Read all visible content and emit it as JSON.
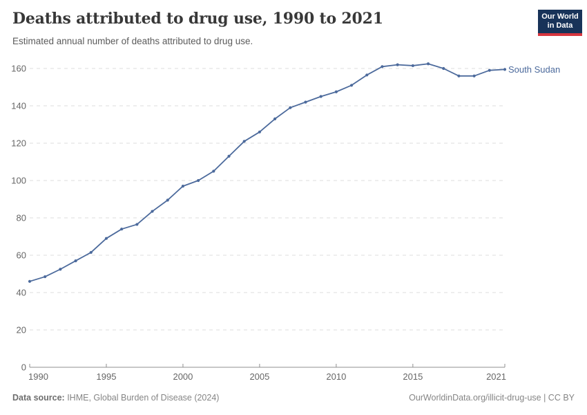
{
  "header": {
    "title": "Deaths attributed to drug use, 1990 to 2021",
    "subtitle": "Estimated annual number of deaths attributed to drug use.",
    "logo": {
      "line1": "Our World",
      "line2": "in Data"
    }
  },
  "chart_data": {
    "type": "line",
    "title": "Deaths attributed to drug use, 1990 to 2021",
    "xlabel": "",
    "ylabel": "",
    "x": [
      1990,
      1991,
      1992,
      1993,
      1994,
      1995,
      1996,
      1997,
      1998,
      1999,
      2000,
      2001,
      2002,
      2003,
      2004,
      2005,
      2006,
      2007,
      2008,
      2009,
      2010,
      2011,
      2012,
      2013,
      2014,
      2015,
      2016,
      2017,
      2018,
      2019,
      2020,
      2021
    ],
    "series": [
      {
        "name": "South Sudan",
        "color": "#4c6a9c",
        "values": [
          46,
          48.5,
          52.5,
          57,
          61.5,
          69,
          74,
          76.5,
          83.5,
          89.5,
          97,
          100,
          105,
          113,
          121,
          126,
          133,
          139,
          142,
          145,
          147.5,
          151,
          156.5,
          161,
          162,
          161.5,
          162.5,
          160,
          156,
          156,
          159,
          159.5
        ]
      }
    ],
    "xlim": [
      1990,
      2021
    ],
    "ylim": [
      0,
      165
    ],
    "yticks": [
      0,
      20,
      40,
      60,
      80,
      100,
      120,
      140,
      160
    ],
    "xticks": [
      1990,
      1995,
      2000,
      2005,
      2010,
      2015,
      2021
    ],
    "grid": "horizontal-dashed",
    "legend_position": "line-end-label",
    "markers": true
  },
  "footer": {
    "source_label": "Data source:",
    "source_text": " IHME, Global Burden of Disease (2024)",
    "rights": "OurWorldinData.org/illicit-drug-use | CC BY"
  },
  "colors": {
    "series": "#4c6a9c",
    "grid": "#dcdcdc",
    "axis": "#8f8f8f",
    "tick_label": "#666666",
    "title": "#383838",
    "subtitle": "#5b5b5b",
    "footer": "#858585",
    "logo_bg": "#183359",
    "logo_accent": "#d7363f"
  }
}
